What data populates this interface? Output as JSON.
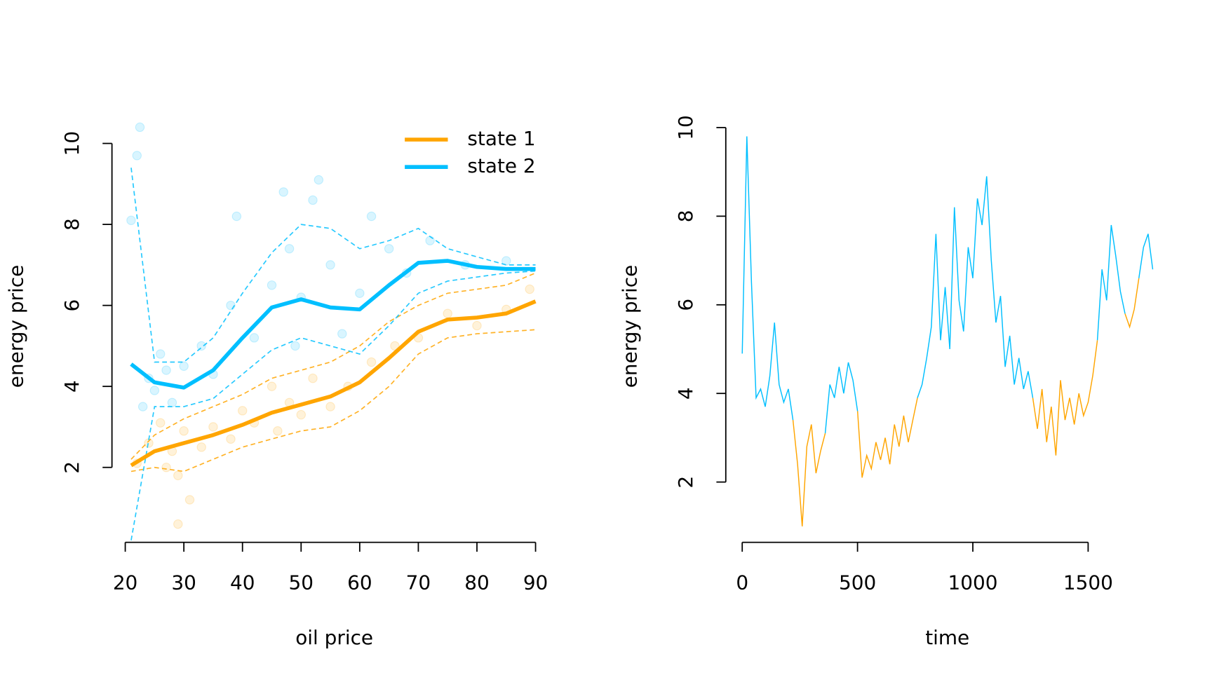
{
  "chart_data": [
    {
      "type": "scatter",
      "xlabel": "oil price",
      "ylabel": "energy price",
      "xlim": [
        18,
        92
      ],
      "xticks": [
        20,
        30,
        40,
        50,
        60,
        70,
        80,
        90
      ],
      "ylim": [
        0.15,
        10.5
      ],
      "yticks": [
        2,
        4,
        6,
        8,
        10
      ],
      "legend": "topright",
      "x": [
        21,
        25,
        30,
        35,
        40,
        45,
        50,
        55,
        60,
        65,
        70,
        75,
        80,
        85,
        90
      ],
      "series": [
        {
          "name": "state 1",
          "color": "#FFA500",
          "values": [
            2.05,
            2.4,
            2.6,
            2.8,
            3.05,
            3.35,
            3.55,
            3.75,
            4.1,
            4.7,
            5.35,
            5.65,
            5.7,
            5.8,
            6.1
          ],
          "samples": [
            [
              2.2,
              2.8,
              3.2,
              3.5,
              3.8,
              4.2,
              4.4,
              4.6,
              5.0,
              5.6,
              6.0,
              6.3,
              6.4,
              6.5,
              6.8
            ],
            [
              1.9,
              2.0,
              1.9,
              2.2,
              2.5,
              2.7,
              2.9,
              3.0,
              3.4,
              4.0,
              4.8,
              5.2,
              5.3,
              5.35,
              5.4
            ]
          ],
          "points": {
            "x": [
              22,
              24,
              26,
              27,
              28,
              29,
              30,
              31,
              29,
              33,
              35,
              38,
              40,
              42,
              45,
              46,
              48,
              50,
              52,
              55,
              58,
              62,
              66,
              70,
              75,
              80,
              85,
              89
            ],
            "y": [
              2.1,
              2.6,
              3.1,
              2.0,
              2.4,
              1.8,
              2.9,
              1.2,
              0.6,
              2.5,
              3.0,
              2.7,
              3.4,
              3.1,
              4.0,
              2.9,
              3.6,
              3.3,
              4.2,
              3.5,
              4.0,
              4.6,
              5.0,
              5.2,
              5.8,
              5.5,
              5.9,
              6.4
            ]
          }
        },
        {
          "name": "state 2",
          "color": "#00BFFF",
          "values": [
            4.55,
            4.1,
            3.97,
            4.4,
            5.2,
            5.95,
            6.15,
            5.95,
            5.9,
            6.5,
            7.05,
            7.1,
            6.95,
            6.9,
            6.9
          ],
          "samples": [
            [
              9.4,
              4.6,
              4.6,
              5.2,
              6.3,
              7.3,
              8.0,
              7.9,
              7.4,
              7.6,
              7.9,
              7.4,
              7.2,
              7.0,
              7.0
            ],
            [
              0.2,
              3.5,
              3.5,
              3.7,
              4.3,
              4.9,
              5.2,
              5.0,
              4.8,
              5.5,
              6.3,
              6.6,
              6.7,
              6.8,
              6.85
            ]
          ],
          "points": {
            "x": [
              21,
              22,
              22.5,
              23,
              24,
              25,
              26,
              27,
              28,
              30,
              33,
              35,
              38,
              39,
              42,
              45,
              47,
              48,
              49,
              50,
              52,
              53,
              55,
              57,
              60,
              62,
              65,
              68,
              72,
              78,
              85
            ],
            "y": [
              8.1,
              9.7,
              10.4,
              3.5,
              4.2,
              3.9,
              4.8,
              4.4,
              3.6,
              4.5,
              5.0,
              4.3,
              6.0,
              8.2,
              5.2,
              6.5,
              8.8,
              7.4,
              5.0,
              6.2,
              8.6,
              9.1,
              7.0,
              5.3,
              6.3,
              8.2,
              7.4,
              6.8,
              7.6,
              7.0,
              7.1
            ]
          }
        }
      ]
    },
    {
      "type": "line",
      "xlabel": "time",
      "ylabel": "energy price",
      "xlim": [
        -40,
        1830
      ],
      "xticks": [
        0,
        500,
        1000,
        1500
      ],
      "ylim": [
        0.64,
        10.5
      ],
      "yticks": [
        2,
        4,
        6,
        8,
        10
      ],
      "x": [
        0,
        20,
        40,
        60,
        80,
        100,
        120,
        140,
        160,
        180,
        200,
        220,
        240,
        260,
        280,
        300,
        320,
        340,
        360,
        380,
        400,
        420,
        440,
        460,
        480,
        500,
        520,
        540,
        560,
        580,
        600,
        620,
        640,
        660,
        680,
        700,
        720,
        740,
        760,
        780,
        800,
        820,
        840,
        860,
        880,
        900,
        920,
        940,
        960,
        980,
        1000,
        1020,
        1040,
        1060,
        1080,
        1100,
        1120,
        1140,
        1160,
        1180,
        1200,
        1220,
        1240,
        1260,
        1280,
        1300,
        1320,
        1340,
        1360,
        1380,
        1400,
        1420,
        1440,
        1460,
        1480,
        1500,
        1520,
        1540,
        1560,
        1580,
        1600,
        1620,
        1640,
        1660,
        1680,
        1700,
        1720,
        1740,
        1760,
        1780
      ],
      "series": [
        {
          "name": "state 1",
          "color": "#FFA500",
          "values": [
            null,
            null,
            null,
            null,
            null,
            null,
            null,
            null,
            null,
            null,
            null,
            3.4,
            2.4,
            1.0,
            2.8,
            3.3,
            2.2,
            2.7,
            3.1,
            null,
            null,
            null,
            null,
            null,
            null,
            3.6,
            2.1,
            2.6,
            2.3,
            2.9,
            2.5,
            3.0,
            2.4,
            3.3,
            2.8,
            3.5,
            2.9,
            3.4,
            3.9,
            null,
            null,
            null,
            null,
            null,
            null,
            null,
            null,
            null,
            null,
            null,
            null,
            null,
            null,
            null,
            null,
            null,
            null,
            null,
            null,
            null,
            null,
            null,
            null,
            3.9,
            3.2,
            4.1,
            2.9,
            3.7,
            2.6,
            4.3,
            3.4,
            3.9,
            3.3,
            4.0,
            3.5,
            3.8,
            4.4,
            5.2,
            null,
            null,
            null,
            null,
            null,
            5.8,
            5.5,
            5.9,
            6.6,
            null,
            null,
            null
          ]
        },
        {
          "name": "state 2",
          "color": "#00BFFF",
          "values": [
            4.9,
            9.8,
            6.5,
            3.9,
            4.1,
            3.7,
            4.4,
            5.6,
            4.2,
            3.8,
            4.1,
            3.4,
            null,
            null,
            null,
            null,
            null,
            null,
            3.1,
            4.2,
            3.9,
            4.6,
            4.0,
            4.7,
            4.3,
            3.6,
            null,
            null,
            null,
            null,
            null,
            null,
            null,
            null,
            null,
            null,
            null,
            null,
            3.9,
            4.2,
            4.8,
            5.5,
            7.6,
            5.2,
            6.4,
            5.0,
            8.2,
            6.1,
            5.4,
            7.3,
            6.6,
            8.4,
            7.8,
            8.9,
            7.0,
            5.6,
            6.2,
            4.6,
            5.3,
            4.2,
            4.8,
            4.1,
            4.5,
            3.9,
            null,
            null,
            null,
            null,
            null,
            null,
            null,
            null,
            null,
            null,
            null,
            null,
            null,
            5.2,
            6.8,
            6.1,
            7.8,
            7.1,
            6.3,
            5.8,
            null,
            null,
            6.6,
            7.3,
            7.6,
            6.8
          ]
        }
      ]
    }
  ]
}
